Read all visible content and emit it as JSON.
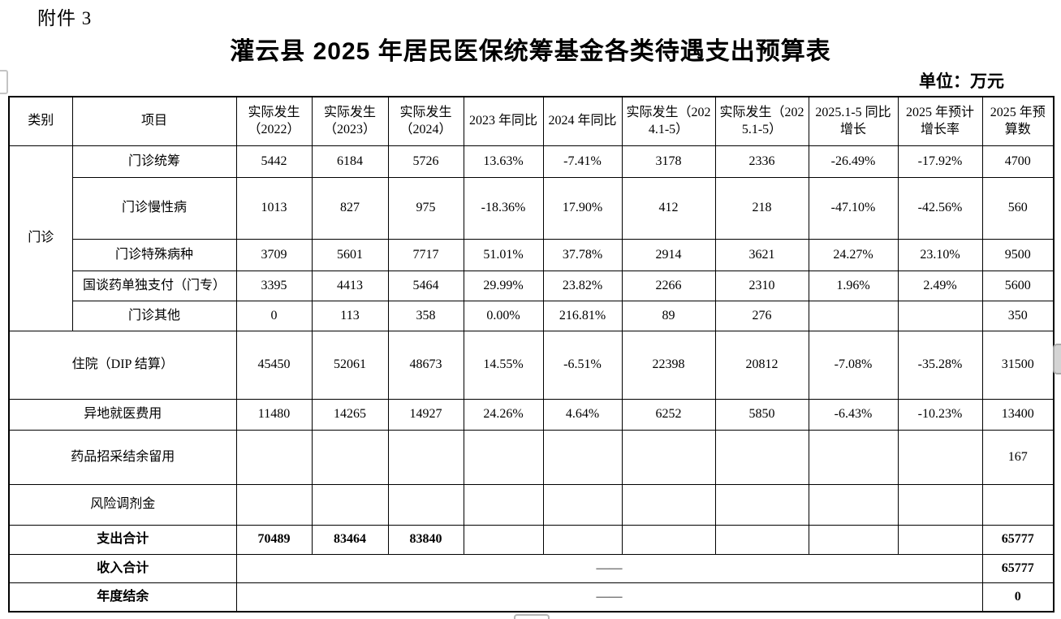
{
  "page": {
    "attachment_label": "附件 3",
    "title": "灌云县 2025 年居民医保统筹基金各类待遇支出预算表",
    "unit_label": "单位：万元"
  },
  "table": {
    "category_group": "门诊",
    "columns": [
      "类别",
      "项目",
      "实际发生（2022）",
      "实际发生（2023）",
      "实际发生（2024）",
      "2023 年同比",
      "2024 年同比",
      "实际发生（2024.1-5）",
      "实际发生（2025.1-5）",
      "2025.1-5 同比增长",
      "2025 年预计增长率",
      "2025 年预算数"
    ],
    "rows": [
      {
        "label": "门诊统筹",
        "bold": false,
        "cells": [
          "5442",
          "6184",
          "5726",
          "13.63%",
          "-7.41%",
          "3178",
          "2336",
          "-26.49%",
          "-17.92%",
          "4700"
        ]
      },
      {
        "label": "门诊慢性病",
        "bold": false,
        "cells": [
          "1013",
          "827",
          "975",
          "-18.36%",
          "17.90%",
          "412",
          "218",
          "-47.10%",
          "-42.56%",
          "560"
        ]
      },
      {
        "label": "门诊特殊病种",
        "bold": false,
        "cells": [
          "3709",
          "5601",
          "7717",
          "51.01%",
          "37.78%",
          "2914",
          "3621",
          "24.27%",
          "23.10%",
          "9500"
        ]
      },
      {
        "label": "国谈药单独支付（门专）",
        "bold": false,
        "cells": [
          "3395",
          "4413",
          "5464",
          "29.99%",
          "23.82%",
          "2266",
          "2310",
          "1.96%",
          "2.49%",
          "5600"
        ]
      },
      {
        "label": "门诊其他",
        "bold": false,
        "cells": [
          "0",
          "113",
          "358",
          "0.00%",
          "216.81%",
          "89",
          "276",
          "",
          "",
          "350"
        ]
      },
      {
        "label": "住院（DIP 结算）",
        "bold": false,
        "cells": [
          "45450",
          "52061",
          "48673",
          "14.55%",
          "-6.51%",
          "22398",
          "20812",
          "-7.08%",
          "-35.28%",
          "31500"
        ]
      },
      {
        "label": "异地就医费用",
        "bold": false,
        "cells": [
          "11480",
          "14265",
          "14927",
          "24.26%",
          "4.64%",
          "6252",
          "5850",
          "-6.43%",
          "-10.23%",
          "13400"
        ]
      },
      {
        "label": "药品招采结余留用",
        "bold": false,
        "cells": [
          "",
          "",
          "",
          "",
          "",
          "",
          "",
          "",
          "",
          "167"
        ]
      },
      {
        "label": "风险调剂金",
        "bold": false,
        "cells": [
          "",
          "",
          "",
          "",
          "",
          "",
          "",
          "",
          "",
          ""
        ]
      },
      {
        "label": "支出合计",
        "bold": true,
        "cells": [
          "70489",
          "83464",
          "83840",
          "",
          "",
          "",
          "",
          "",
          "",
          "65777"
        ]
      },
      {
        "label": "收入合计",
        "bold": true,
        "dash": "——",
        "last": "65777"
      },
      {
        "label": "年度结余",
        "bold": true,
        "dash": "——",
        "last": "0"
      }
    ]
  }
}
